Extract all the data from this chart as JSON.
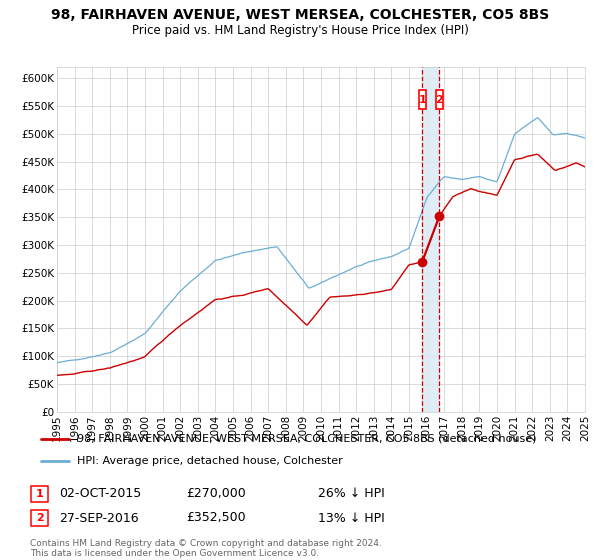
{
  "title": "98, FAIRHAVEN AVENUE, WEST MERSEA, COLCHESTER, CO5 8BS",
  "subtitle": "Price paid vs. HM Land Registry's House Price Index (HPI)",
  "ylim": [
    0,
    620000
  ],
  "yticks": [
    0,
    50000,
    100000,
    150000,
    200000,
    250000,
    300000,
    350000,
    400000,
    450000,
    500000,
    550000,
    600000
  ],
  "ytick_labels": [
    "£0",
    "£50K",
    "£100K",
    "£150K",
    "£200K",
    "£250K",
    "£300K",
    "£350K",
    "£400K",
    "£450K",
    "£500K",
    "£550K",
    "£600K"
  ],
  "hpi_color": "#6baed6",
  "price_color": "#cc0000",
  "marker_color": "#cc0000",
  "vline_color": "#cc0000",
  "vspan_color": "#daeaf5",
  "sale1_date": 2015.75,
  "sale1_price": 270000,
  "sale2_date": 2016.73,
  "sale2_price": 352500,
  "legend_line1": "98, FAIRHAVEN AVENUE, WEST MERSEA, COLCHESTER, CO5 8BS (detached house)",
  "legend_line2": "HPI: Average price, detached house, Colchester",
  "footnote": "Contains HM Land Registry data © Crown copyright and database right 2024.\nThis data is licensed under the Open Government Licence v3.0.",
  "background_color": "#ffffff",
  "grid_color": "#cccccc",
  "title_fontsize": 10,
  "subtitle_fontsize": 8.5,
  "tick_fontsize": 7.5,
  "legend_fontsize": 8,
  "notes_fontsize": 9,
  "footnote_fontsize": 6.5,
  "xlim_start": 1995,
  "xlim_end": 2025
}
